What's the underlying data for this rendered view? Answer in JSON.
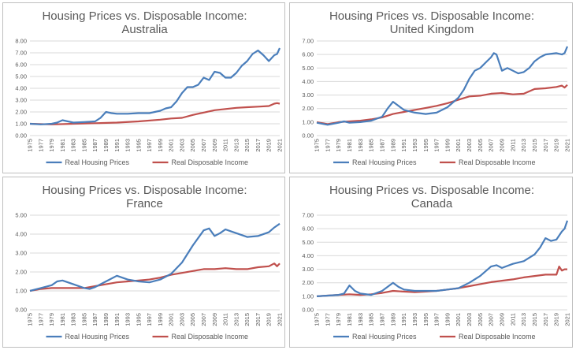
{
  "colors": {
    "housing": "#4a7ebb",
    "income": "#c0504d",
    "grid": "#d9d9d9",
    "text": "#595959"
  },
  "chart_data": [
    {
      "type": "line",
      "title": "Housing Prices vs. Disposable Income:",
      "subtitle": "Australia",
      "ylim": [
        0,
        8
      ],
      "ystep": 1,
      "yticks": [
        "0.00",
        "1.00",
        "2.00",
        "3.00",
        "4.00",
        "5.00",
        "6.00",
        "7.00",
        "8.00"
      ],
      "xticks": [
        "1975",
        "1977",
        "1979",
        "1981",
        "1983",
        "1985",
        "1987",
        "1989",
        "1991",
        "1993",
        "1995",
        "1997",
        "1999",
        "2001",
        "2003",
        "2005",
        "2007",
        "2009",
        "2011",
        "2013",
        "2015",
        "2017",
        "2019",
        "2021"
      ],
      "xlim": [
        1975,
        2021
      ],
      "grid": true,
      "legend": "bottom",
      "series": [
        {
          "name": "Real Housing Prices",
          "color_key": "housing",
          "x": [
            1975,
            1977,
            1979,
            1980,
            1981,
            1982,
            1983,
            1985,
            1987,
            1988,
            1989,
            1990,
            1991,
            1993,
            1995,
            1997,
            1999,
            2000,
            2001,
            2002,
            2003,
            2004,
            2005,
            2006,
            2007,
            2008,
            2009,
            2010,
            2011,
            2012,
            2013,
            2014,
            2015,
            2016,
            2017,
            2018,
            2019,
            2020,
            2020.5,
            2021
          ],
          "y": [
            1.0,
            0.95,
            1.0,
            1.1,
            1.3,
            1.2,
            1.1,
            1.15,
            1.2,
            1.5,
            2.0,
            1.9,
            1.85,
            1.85,
            1.9,
            1.9,
            2.1,
            2.3,
            2.4,
            2.9,
            3.6,
            4.1,
            4.1,
            4.3,
            4.9,
            4.7,
            5.4,
            5.3,
            4.9,
            4.9,
            5.3,
            5.9,
            6.3,
            6.9,
            7.2,
            6.8,
            6.3,
            6.8,
            6.9,
            7.4
          ]
        },
        {
          "name": "Real Disposable Income",
          "color_key": "income",
          "x": [
            1975,
            1979,
            1983,
            1987,
            1991,
            1995,
            1999,
            2001,
            2003,
            2005,
            2007,
            2009,
            2011,
            2013,
            2015,
            2017,
            2019,
            2020,
            2020.5,
            2021
          ],
          "y": [
            1.0,
            0.95,
            1.0,
            1.05,
            1.1,
            1.2,
            1.35,
            1.45,
            1.5,
            1.75,
            1.95,
            2.15,
            2.25,
            2.35,
            2.4,
            2.45,
            2.5,
            2.7,
            2.75,
            2.7
          ]
        }
      ]
    },
    {
      "type": "line",
      "title": "Housing Prices vs. Disposable Income:",
      "subtitle": "United Kingdom",
      "ylim": [
        0,
        7
      ],
      "ystep": 1,
      "yticks": [
        "0.00",
        "1.00",
        "2.00",
        "3.00",
        "4.00",
        "5.00",
        "6.00",
        "7.00"
      ],
      "xticks": [
        "1975",
        "1977",
        "1979",
        "1981",
        "1983",
        "1985",
        "1987",
        "1989",
        "1991",
        "1993",
        "1995",
        "1997",
        "1999",
        "2001",
        "2003",
        "2005",
        "2007",
        "2009",
        "2011",
        "2013",
        "2015",
        "2017",
        "2019",
        "2021"
      ],
      "xlim": [
        1975,
        2021
      ],
      "grid": true,
      "legend": "bottom",
      "series": [
        {
          "name": "Real Housing Prices",
          "color_key": "housing",
          "x": [
            1975,
            1977,
            1979,
            1980,
            1981,
            1983,
            1985,
            1987,
            1988,
            1989,
            1990,
            1991,
            1993,
            1995,
            1997,
            1999,
            2001,
            2002,
            2003,
            2004,
            2005,
            2006,
            2007,
            2007.5,
            2008,
            2009,
            2010,
            2011,
            2012,
            2013,
            2014,
            2015,
            2016,
            2017,
            2019,
            2020,
            2020.5,
            2021
          ],
          "y": [
            0.95,
            0.8,
            0.95,
            1.05,
            0.95,
            1.0,
            1.1,
            1.4,
            2.0,
            2.5,
            2.2,
            1.9,
            1.7,
            1.6,
            1.7,
            2.1,
            2.8,
            3.4,
            4.2,
            4.8,
            5.0,
            5.4,
            5.8,
            6.1,
            6.0,
            4.8,
            5.0,
            4.8,
            4.6,
            4.7,
            5.0,
            5.5,
            5.8,
            6.0,
            6.1,
            6.0,
            6.1,
            6.6
          ]
        },
        {
          "name": "Real Disposable Income",
          "color_key": "income",
          "x": [
            1975,
            1977,
            1979,
            1981,
            1983,
            1985,
            1987,
            1989,
            1991,
            1993,
            1995,
            1997,
            1999,
            2001,
            2003,
            2005,
            2007,
            2009,
            2011,
            2013,
            2015,
            2017,
            2019,
            2020,
            2020.5,
            2021
          ],
          "y": [
            1.0,
            0.85,
            1.0,
            1.05,
            1.1,
            1.2,
            1.35,
            1.6,
            1.75,
            1.9,
            2.05,
            2.2,
            2.4,
            2.65,
            2.9,
            2.95,
            3.1,
            3.15,
            3.05,
            3.1,
            3.45,
            3.5,
            3.6,
            3.7,
            3.55,
            3.75
          ]
        }
      ]
    },
    {
      "type": "line",
      "title": "Housing Prices vs. Disposable Income:",
      "subtitle": "France",
      "ylim": [
        0,
        5
      ],
      "ystep": 1,
      "yticks": [
        "0.00",
        "1.00",
        "2.00",
        "3.00",
        "4.00",
        "5.00"
      ],
      "xticks": [
        "1975",
        "1977",
        "1979",
        "1981",
        "1983",
        "1985",
        "1987",
        "1989",
        "1991",
        "1993",
        "1995",
        "1997",
        "1999",
        "2001",
        "2003",
        "2005",
        "2007",
        "2009",
        "2011",
        "2013",
        "2015",
        "2017",
        "2019",
        "2021"
      ],
      "xlim": [
        1975,
        2021
      ],
      "grid": true,
      "legend": "bottom",
      "series": [
        {
          "name": "Real Housing Prices",
          "color_key": "housing",
          "x": [
            1975,
            1977,
            1979,
            1980,
            1981,
            1983,
            1985,
            1986,
            1987,
            1989,
            1991,
            1993,
            1995,
            1997,
            1999,
            2001,
            2003,
            2005,
            2007,
            2008,
            2009,
            2010,
            2011,
            2012,
            2013,
            2015,
            2017,
            2019,
            2020,
            2021
          ],
          "y": [
            1.0,
            1.15,
            1.3,
            1.5,
            1.55,
            1.35,
            1.15,
            1.1,
            1.2,
            1.5,
            1.8,
            1.6,
            1.5,
            1.45,
            1.6,
            1.9,
            2.5,
            3.4,
            4.2,
            4.3,
            3.9,
            4.05,
            4.25,
            4.15,
            4.05,
            3.85,
            3.9,
            4.1,
            4.35,
            4.55
          ]
        },
        {
          "name": "Real Disposable Income",
          "color_key": "income",
          "x": [
            1975,
            1977,
            1979,
            1981,
            1983,
            1985,
            1987,
            1989,
            1991,
            1993,
            1995,
            1997,
            1999,
            2001,
            2003,
            2005,
            2007,
            2009,
            2011,
            2013,
            2015,
            2017,
            2019,
            2020,
            2020.5,
            2021
          ],
          "y": [
            1.0,
            1.1,
            1.15,
            1.15,
            1.15,
            1.15,
            1.25,
            1.35,
            1.45,
            1.5,
            1.55,
            1.6,
            1.7,
            1.85,
            1.95,
            2.05,
            2.15,
            2.15,
            2.2,
            2.15,
            2.15,
            2.25,
            2.3,
            2.45,
            2.3,
            2.45
          ]
        }
      ]
    },
    {
      "type": "line",
      "title": "Housing Prices vs. Disposable Income:",
      "subtitle": "Canada",
      "ylim": [
        0,
        7
      ],
      "ystep": 1,
      "yticks": [
        "0.00",
        "1.00",
        "2.00",
        "3.00",
        "4.00",
        "5.00",
        "6.00",
        "7.00"
      ],
      "xticks": [
        "1975",
        "1977",
        "1979",
        "1981",
        "1983",
        "1985",
        "1987",
        "1989",
        "1991",
        "1993",
        "1995",
        "1997",
        "1999",
        "2001",
        "2003",
        "2005",
        "2007",
        "2009",
        "2011",
        "2013",
        "2015",
        "2017",
        "2019",
        "2021"
      ],
      "xlim": [
        1975,
        2021
      ],
      "grid": true,
      "legend": "bottom",
      "series": [
        {
          "name": "Real Housing Prices",
          "color_key": "housing",
          "x": [
            1975,
            1977,
            1979,
            1980,
            1981,
            1982,
            1983,
            1985,
            1987,
            1988,
            1989,
            1990,
            1991,
            1993,
            1995,
            1997,
            1999,
            2001,
            2003,
            2005,
            2007,
            2008,
            2009,
            2011,
            2013,
            2015,
            2016,
            2017,
            2018,
            2019,
            2020,
            2020.5,
            2021
          ],
          "y": [
            1.0,
            1.05,
            1.1,
            1.2,
            1.8,
            1.4,
            1.2,
            1.1,
            1.4,
            1.7,
            2.0,
            1.7,
            1.5,
            1.4,
            1.4,
            1.4,
            1.5,
            1.6,
            2.0,
            2.5,
            3.2,
            3.3,
            3.1,
            3.4,
            3.6,
            4.1,
            4.6,
            5.3,
            5.1,
            5.2,
            5.8,
            6.0,
            6.6
          ]
        },
        {
          "name": "Real Disposable Income",
          "color_key": "income",
          "x": [
            1975,
            1979,
            1981,
            1983,
            1985,
            1987,
            1989,
            1991,
            1993,
            1995,
            1997,
            1999,
            2001,
            2003,
            2005,
            2007,
            2009,
            2011,
            2013,
            2015,
            2017,
            2019,
            2019.5,
            2020,
            2020.5,
            2021
          ],
          "y": [
            1.0,
            1.1,
            1.15,
            1.1,
            1.15,
            1.25,
            1.4,
            1.35,
            1.3,
            1.35,
            1.4,
            1.5,
            1.6,
            1.75,
            1.9,
            2.05,
            2.15,
            2.25,
            2.4,
            2.5,
            2.6,
            2.6,
            3.2,
            2.9,
            3.0,
            3.0
          ]
        }
      ]
    }
  ]
}
